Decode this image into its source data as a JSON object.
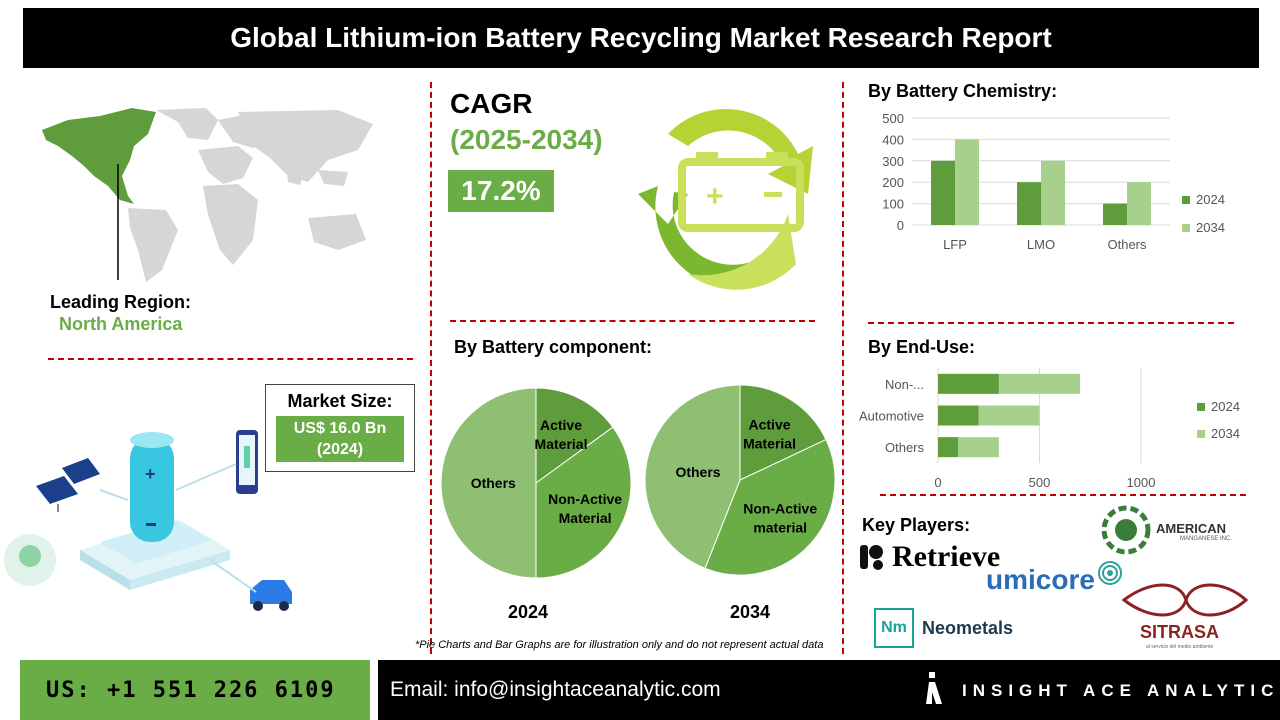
{
  "title": "Global Lithium-ion Battery Recycling Market Research Report",
  "leading_region": {
    "label": "Leading Region:",
    "value": "North America"
  },
  "cagr": {
    "label": "CAGR",
    "years": "(2025-2034)",
    "value": "17.2%"
  },
  "market_size": {
    "label": "Market Size:",
    "value_line1": "US$ 16.0 Bn",
    "value_line2": "(2024)"
  },
  "colors": {
    "green_dark": "#5e9c3c",
    "green_light": "#a8d08d",
    "green_accent": "#6aac46",
    "divider_red": "#c00000"
  },
  "chart_data": [
    {
      "type": "bar",
      "title": "By Battery Chemistry:",
      "categories": [
        "LFP",
        "LMO",
        "Others"
      ],
      "series": [
        {
          "name": "2024",
          "values": [
            300,
            200,
            100
          ]
        },
        {
          "name": "2034",
          "values": [
            400,
            300,
            200
          ]
        }
      ],
      "ylim": [
        0,
        500
      ],
      "yticks": [
        "0",
        "100",
        "200",
        "300",
        "400",
        "500"
      ],
      "grid": true,
      "legend": "right"
    },
    {
      "type": "pie",
      "title": "By Battery component:",
      "charts": [
        {
          "year": "2024",
          "slices": [
            {
              "label": "Active Material",
              "value": 15
            },
            {
              "label": "Non-Active Material",
              "value": 35
            },
            {
              "label": "Others",
              "value": 50
            }
          ]
        },
        {
          "year": "2034",
          "slices": [
            {
              "label": "Active Material",
              "value": 18
            },
            {
              "label": "Non-Active material",
              "value": 38
            },
            {
              "label": "Others",
              "value": 44
            }
          ]
        }
      ]
    },
    {
      "type": "bar",
      "orientation": "horizontal",
      "stacked": true,
      "title": "By End-Use:",
      "categories": [
        "Non-...",
        "Automotive",
        "Others"
      ],
      "series": [
        {
          "name": "2024",
          "values": [
            300,
            200,
            100
          ]
        },
        {
          "name": "2034",
          "values": [
            400,
            300,
            200
          ]
        }
      ],
      "xlim": [
        0,
        1000
      ],
      "xticks": [
        "0",
        "500",
        "1000"
      ],
      "legend": "right"
    }
  ],
  "key_players": {
    "label": "Key Players:",
    "logos": [
      "Retrieve",
      "AMERICAN",
      "MANGANESE INC.",
      "umicore",
      "Nm",
      "Neometals",
      "SITRASA",
      "al servicio del medio ambiente"
    ]
  },
  "footnote": "*Pie Charts and Bar Graphs are for illustration only and do not represent actual data",
  "footer": {
    "phone": "US: +1 551 226 6109",
    "email": "Email: info@insightaceanalytic.com",
    "brand": "INSIGHT ACE ANALYTIC"
  }
}
